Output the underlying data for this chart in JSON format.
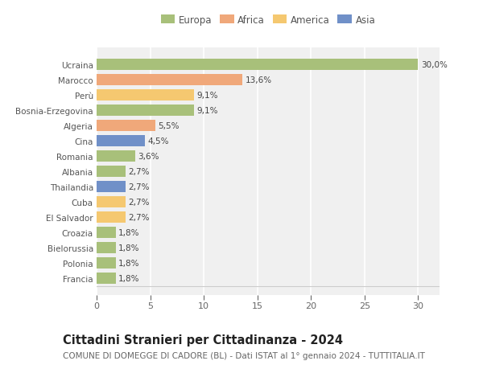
{
  "categories": [
    "Francia",
    "Polonia",
    "Bielorussia",
    "Croazia",
    "El Salvador",
    "Cuba",
    "Thailandia",
    "Albania",
    "Romania",
    "Cina",
    "Algeria",
    "Bosnia-Erzegovina",
    "Perù",
    "Marocco",
    "Ucraina"
  ],
  "values": [
    1.8,
    1.8,
    1.8,
    1.8,
    2.7,
    2.7,
    2.7,
    2.7,
    3.6,
    4.5,
    5.5,
    9.1,
    9.1,
    13.6,
    30.0
  ],
  "labels": [
    "1,8%",
    "1,8%",
    "1,8%",
    "1,8%",
    "2,7%",
    "2,7%",
    "2,7%",
    "2,7%",
    "3,6%",
    "4,5%",
    "5,5%",
    "9,1%",
    "9,1%",
    "13,6%",
    "30,0%"
  ],
  "colors": [
    "#a8c07a",
    "#a8c07a",
    "#a8c07a",
    "#a8c07a",
    "#f5c870",
    "#f5c870",
    "#7090c8",
    "#a8c07a",
    "#a8c07a",
    "#7090c8",
    "#f0a87a",
    "#a8c07a",
    "#f5c870",
    "#f0a87a",
    "#a8c07a"
  ],
  "legend_labels": [
    "Europa",
    "Africa",
    "America",
    "Asia"
  ],
  "legend_colors": [
    "#a8c07a",
    "#f0a87a",
    "#f5c870",
    "#7090c8"
  ],
  "title": "Cittadini Stranieri per Cittadinanza - 2024",
  "subtitle": "COMUNE DI DOMEGGE DI CADORE (BL) - Dati ISTAT al 1° gennaio 2024 - TUTTITALIA.IT",
  "xlim": [
    0,
    32
  ],
  "xticks": [
    0,
    5,
    10,
    15,
    20,
    25,
    30
  ],
  "bg_color": "#ffffff",
  "plot_bg_color": "#f0f0f0",
  "grid_color": "#ffffff",
  "bar_height": 0.72,
  "label_fontsize": 7.5,
  "title_fontsize": 10.5,
  "subtitle_fontsize": 7.5,
  "ytick_fontsize": 7.5,
  "xtick_fontsize": 8
}
